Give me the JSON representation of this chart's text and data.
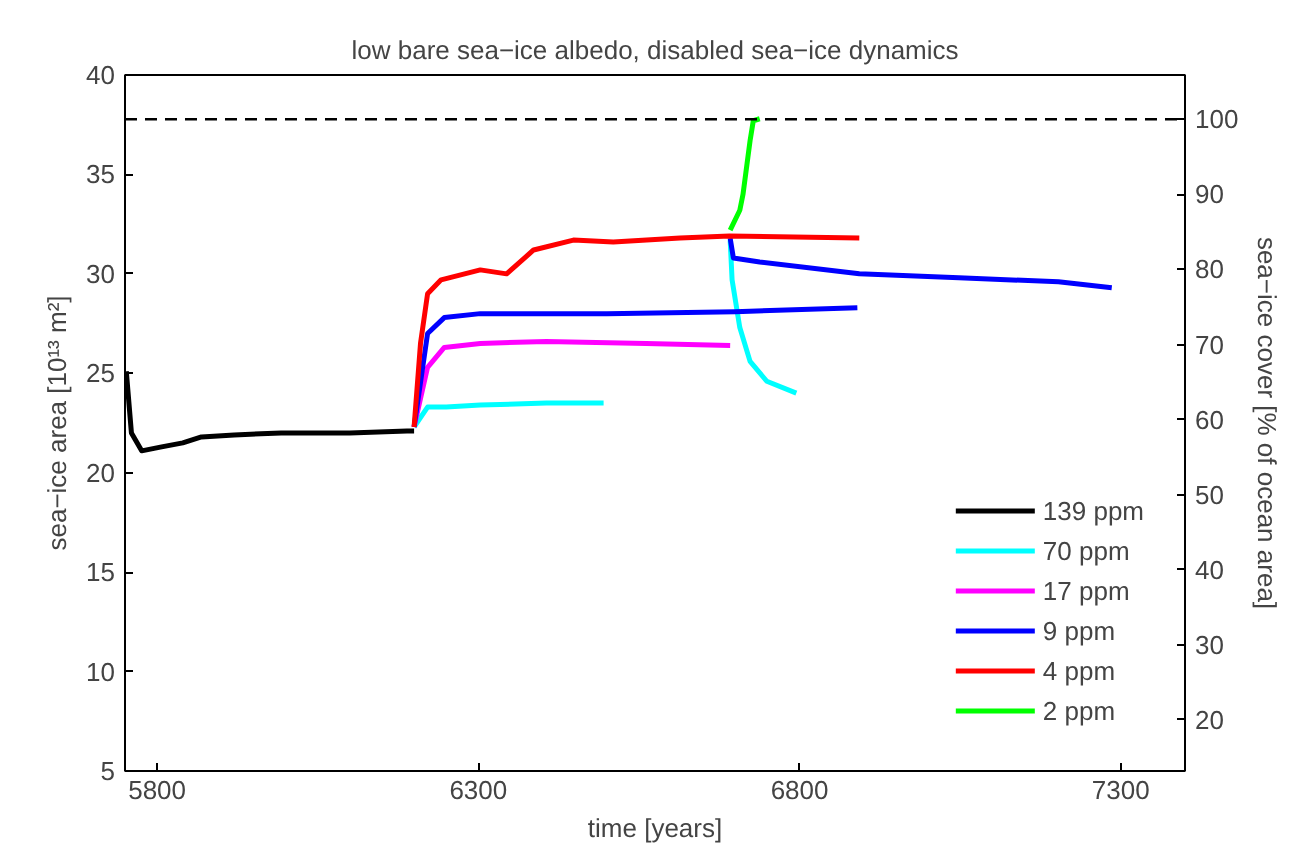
{
  "chart_data": {
    "type": "line",
    "title": "low bare sea−ice albedo, disabled sea−ice dynamics",
    "xlabel": "time [years]",
    "ylabel": "sea−ice area [10¹³ m²]",
    "y2label": "sea−ice cover [% of ocean area]",
    "xlim": [
      5750,
      7400
    ],
    "xticks": [
      5800,
      6300,
      6800,
      7300
    ],
    "ylim": [
      5,
      40
    ],
    "yticks": [
      5,
      10,
      15,
      20,
      25,
      30,
      35,
      40
    ],
    "y2lim": [
      13.2,
      105.9
    ],
    "y2ticks": [
      20,
      30,
      40,
      50,
      60,
      70,
      80,
      90,
      100
    ],
    "grid": false,
    "legend": "bottom right",
    "line_style": "solid",
    "marker": "none",
    "ref_lines": [
      {
        "axis": "y2",
        "value": 100,
        "label": null,
        "color": "#000000",
        "line_style": "dashed"
      }
    ],
    "series": [
      {
        "name": "139 ppm",
        "color": "#000000",
        "x": [
          5752,
          5760,
          5776,
          5807,
          5840,
          5869,
          5920,
          5993,
          6100,
          6189,
          6200
        ],
        "values": [
          25.1,
          22.0,
          21.1,
          21.3,
          21.5,
          21.8,
          21.9,
          22.0,
          22.0,
          22.1,
          22.1
        ]
      },
      {
        "name": "70 ppm",
        "color": "#00ffff",
        "x": [
          6200,
          6221,
          6250,
          6303,
          6406,
          6495,
          null,
          6692,
          6695,
          6707,
          6723,
          6749,
          6795
        ],
        "values": [
          22.3,
          23.3,
          23.3,
          23.4,
          23.5,
          23.5,
          null,
          31.7,
          29.7,
          27.3,
          25.6,
          24.6,
          24.0
        ]
      },
      {
        "name": "17 ppm",
        "color": "#ff00ff",
        "x": [
          6200,
          6221,
          6247,
          6303,
          6406,
          6561,
          6692
        ],
        "values": [
          22.3,
          25.3,
          26.3,
          26.5,
          26.6,
          26.5,
          26.4
        ]
      },
      {
        "name": "9 ppm",
        "color": "#0000ff",
        "x": [
          6200,
          6221,
          6247,
          6303,
          6500,
          6700,
          6890,
          null,
          6692,
          6697,
          6738,
          6893,
          7048,
          7203,
          7286
        ],
        "values": [
          22.3,
          27.0,
          27.8,
          28.0,
          28.0,
          28.1,
          28.3,
          null,
          31.8,
          30.8,
          30.6,
          30.0,
          29.8,
          29.6,
          29.3
        ]
      },
      {
        "name": "4 ppm",
        "color": "#ff0000",
        "x": [
          6200,
          6210,
          6221,
          6242,
          6303,
          6344,
          6386,
          6448,
          6510,
          6614,
          6691,
          6893
        ],
        "values": [
          22.3,
          26.5,
          29.0,
          29.7,
          30.2,
          30.0,
          31.2,
          31.7,
          31.6,
          31.8,
          31.9,
          31.8
        ]
      },
      {
        "name": "2 ppm",
        "color": "#00ff00",
        "x": [
          6692,
          6707,
          6712,
          6723,
          6728,
          6738
        ],
        "values": [
          32.2,
          33.2,
          34.0,
          36.7,
          37.7,
          37.8
        ]
      }
    ]
  }
}
